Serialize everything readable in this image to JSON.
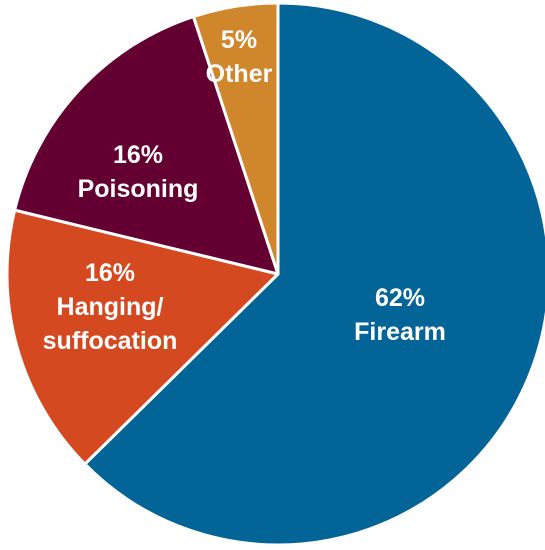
{
  "chart_data": {
    "type": "pie",
    "slices": [
      {
        "label": "Firearm",
        "pct_label": "62%",
        "value": 62,
        "color": "#036597"
      },
      {
        "label": "Hanging/\nsuffocation",
        "pct_label": "16%",
        "value": 16,
        "color": "#D4491F"
      },
      {
        "label": "Poisoning",
        "pct_label": "16%",
        "value": 16,
        "color": "#630031"
      },
      {
        "label": "Other",
        "pct_label": "5%",
        "value": 5,
        "color": "#D0862B"
      }
    ],
    "start_angle": "12 o'clock",
    "direction": "clockwise"
  }
}
